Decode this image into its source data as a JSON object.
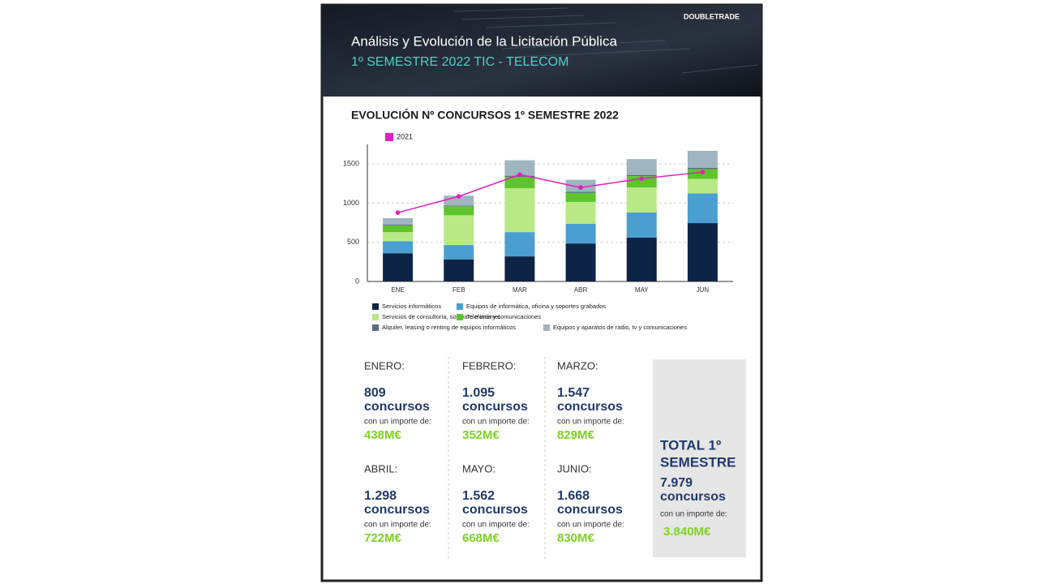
{
  "header": {
    "title": "Análisis y Evolución de la Licitación Pública",
    "subtitle": "1º SEMESTRE 2022  TIC - TELECOM",
    "logo": "DOUBLETRADE"
  },
  "chart_data": {
    "type": "bar",
    "stacked": true,
    "title": "EVOLUCIÓN Nº CONCURSOS 1º SEMESTRE 2022",
    "categories": [
      "ENE",
      "FEB",
      "MAR",
      "ABR",
      "MAY",
      "JUN"
    ],
    "series": [
      {
        "name": "Servicios informáticos",
        "color": "#0d2447",
        "values": [
          360,
          280,
          320,
          485,
          560,
          745
        ]
      },
      {
        "name": "Equipos de informática, oficina y soportes grabados",
        "color": "#4a9fd0",
        "values": [
          155,
          185,
          310,
          250,
          320,
          380
        ]
      },
      {
        "name": "Servicios de consultoría, software e internet",
        "color": "#b8e986",
        "values": [
          115,
          380,
          560,
          280,
          320,
          185
        ]
      },
      {
        "name": "Telefonía y comunicaciones",
        "color": "#5ec42d",
        "values": [
          85,
          115,
          145,
          115,
          145,
          125
        ]
      },
      {
        "name": "Alquiler, leasing o renting de equipos informáticos",
        "color": "#5a6e7a",
        "values": [
          10,
          10,
          15,
          15,
          15,
          15
        ]
      },
      {
        "name": "Equipos y aparatos de radio, tv y comunicaciones",
        "color": "#9fb5bf",
        "values": [
          84,
          125,
          197,
          153,
          202,
          218
        ]
      },
      {
        "name": "2021",
        "type": "line",
        "color": "#e020c0",
        "values": [
          879,
          1086,
          1365,
          1199,
          1313,
          1396
        ]
      }
    ],
    "ylim": [
      0,
      1750
    ],
    "yticks": [
      0,
      500,
      1000,
      1500
    ],
    "grid": true
  },
  "months": [
    {
      "name": "ENERO:",
      "count": "809",
      "unit": "concursos",
      "note": "con un importe de:",
      "amount": "438M€"
    },
    {
      "name": "FEBRERO:",
      "count": "1.095",
      "unit": "concursos",
      "note": "con un importe de:",
      "amount": "352M€"
    },
    {
      "name": "MARZO:",
      "count": "1.547",
      "unit": "concursos",
      "note": "con un importe de:",
      "amount": "829M€"
    },
    {
      "name": "ABRIL:",
      "count": "1.298",
      "unit": "concursos",
      "note": "con un importe de:",
      "amount": "722M€"
    },
    {
      "name": "MAYO:",
      "count": "1.562",
      "unit": "concursos",
      "note": "con un importe de:",
      "amount": "668M€"
    },
    {
      "name": "JUNIO:",
      "count": "1.668",
      "unit": "concursos",
      "note": "con un importe de:",
      "amount": "830M€"
    }
  ],
  "total": {
    "title_lines": [
      "TOTAL 1º",
      "SEMESTRE"
    ],
    "count": "7.979",
    "unit": "concursos",
    "note": "con un importe de:",
    "amount": "3.840M€"
  }
}
